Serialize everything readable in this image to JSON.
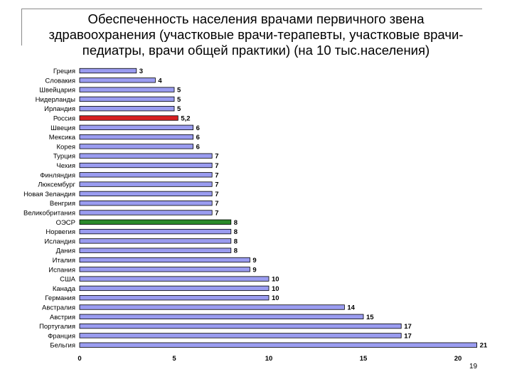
{
  "title_lines": [
    "Обеспеченность населения врачами первичного звена",
    "здравоохранения (участковые врачи-терапевты, участковые врачи-",
    "педиатры, врачи общей практики) (на 10 тыс.населения)"
  ],
  "page_number": "19",
  "colors": {
    "bar_default": "#9a9cf0",
    "bar_highlight_russia": "#d62020",
    "bar_highlight_oecd": "#2a8a2a",
    "bar_stroke": "#000000"
  },
  "chart_data": {
    "type": "bar",
    "orientation": "horizontal",
    "categories": [
      "Греция",
      "Словакия",
      "Швейцария",
      "Нидерланды",
      "Ирландия",
      "Россия",
      "Швеция",
      "Мексика",
      "Корея",
      "Турция",
      "Чехия",
      "Финляндия",
      "Люксембург",
      "Новая Зеландия",
      "Венгрия",
      "Великобритания",
      "ОЭСР",
      "Норвегия",
      "Исландия",
      "Дания",
      "Италия",
      "Испания",
      "США",
      "Канада",
      "Германия",
      "Австралия",
      "Австрия",
      "Португалия",
      "Франция",
      "Бельгия"
    ],
    "values": [
      3,
      4,
      5,
      5,
      5,
      5.2,
      6,
      6,
      6,
      7,
      7,
      7,
      7,
      7,
      7,
      7,
      8,
      8,
      8,
      8,
      9,
      9,
      10,
      10,
      10,
      14,
      15,
      17,
      17,
      21
    ],
    "value_labels": [
      "3",
      "4",
      "5",
      "5",
      "5",
      "5,2",
      "6",
      "6",
      "6",
      "7",
      "7",
      "7",
      "7",
      "7",
      "7",
      "7",
      "8",
      "8",
      "8",
      "8",
      "9",
      "9",
      "10",
      "10",
      "10",
      "14",
      "15",
      "17",
      "17",
      "21"
    ],
    "highlight": {
      "Россия": "bar_highlight_russia",
      "ОЭСР": "bar_highlight_oecd"
    },
    "xlim": [
      0,
      21
    ],
    "xticks": [
      0,
      5,
      10,
      15,
      20
    ],
    "grid": false,
    "legend": "none"
  }
}
